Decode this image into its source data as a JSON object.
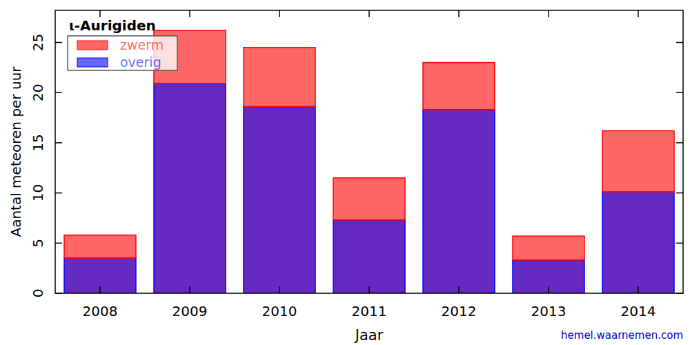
{
  "chart_data": {
    "type": "bar",
    "title": "ι-Aurigiden",
    "x_label": "Jaar",
    "y_label": "Aantal meteoren per uur",
    "annotations": [
      "hemel.waarnemen.com"
    ],
    "categories": [
      "2008",
      "2009",
      "2010",
      "2011",
      "2012",
      "2013",
      "2014"
    ],
    "series": [
      {
        "name": "overig",
        "color": "#0000ff",
        "values": [
          3.5,
          20.9,
          18.6,
          7.3,
          18.3,
          3.3,
          10.1
        ]
      },
      {
        "name": "zwerm",
        "color": "#ff0000",
        "values": [
          2.3,
          5.3,
          5.9,
          4.2,
          4.7,
          2.4,
          6.1
        ]
      }
    ],
    "stacked": true,
    "legend": "upper left",
    "grid": false,
    "ylim": [
      0,
      28.2
    ],
    "yticks": [
      0,
      5,
      10,
      15,
      20,
      25
    ]
  }
}
